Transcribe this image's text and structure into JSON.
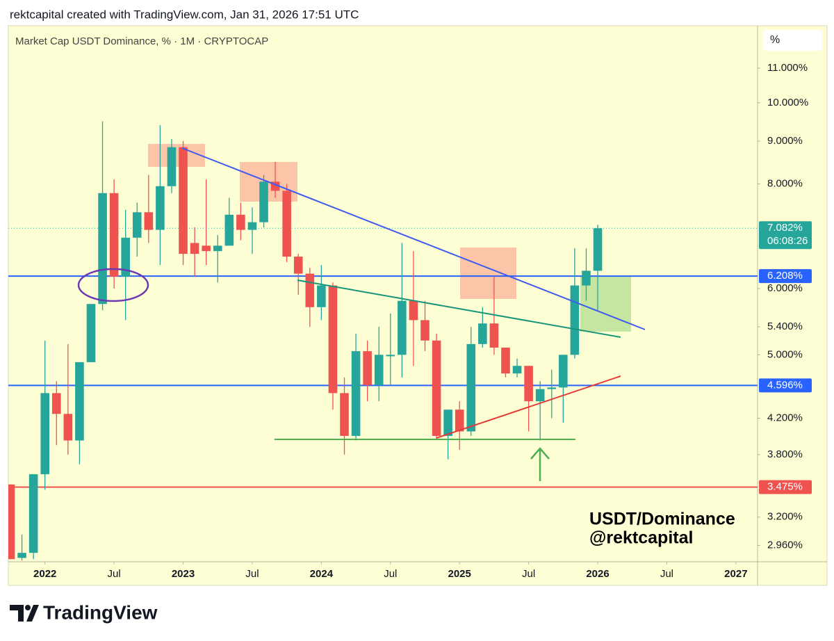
{
  "header": "rektcapital created with TradingView.com, Jan 31, 2026 17:51 UTC",
  "chart_data": {
    "type": "candlestick",
    "legend": "Market Cap USDT Dominance, % · 1M · CRYPTOCAP",
    "scale_unit": "%",
    "log_scale": true,
    "up_color": "#26a69a",
    "down_color": "#ef5350",
    "x": [
      "2021-10",
      "2021-11",
      "2021-12",
      "2022-01",
      "2022-02",
      "2022-03",
      "2022-04",
      "2022-05",
      "2022-06",
      "2022-07",
      "2022-08",
      "2022-09",
      "2022-10",
      "2022-11",
      "2022-12",
      "2023-01",
      "2023-02",
      "2023-03",
      "2023-04",
      "2023-05",
      "2023-06",
      "2023-07",
      "2023-08",
      "2023-09",
      "2023-10",
      "2023-11",
      "2023-12",
      "2024-01",
      "2024-02",
      "2024-03",
      "2024-04",
      "2024-05",
      "2024-06",
      "2024-07",
      "2024-08",
      "2024-09",
      "2024-10",
      "2024-11",
      "2024-12",
      "2025-01",
      "2025-02",
      "2025-03",
      "2025-04",
      "2025-05",
      "2025-06",
      "2025-07",
      "2025-08",
      "2025-09",
      "2025-10",
      "2025-11",
      "2025-12",
      "2026-01"
    ],
    "open": [
      3.5,
      2.86,
      2.9,
      3.6,
      4.5,
      4.25,
      3.95,
      4.9,
      5.75,
      7.8,
      6.2,
      6.9,
      7.4,
      7.05,
      7.95,
      8.85,
      6.8,
      6.75,
      6.65,
      6.75,
      7.35,
      7.05,
      7.2,
      8.05,
      7.85,
      6.55,
      6.25,
      5.7,
      6.05,
      4.5,
      4.0,
      5.05,
      4.6,
      4.98,
      5.0,
      5.8,
      5.5,
      5.2,
      4.0,
      4.3,
      4.05,
      5.15,
      5.45,
      5.1,
      4.75,
      4.85,
      4.4,
      4.55,
      4.57,
      5.0,
      6.05,
      6.3
    ],
    "high": [
      3.5,
      3.05,
      3.6,
      5.2,
      4.65,
      5.15,
      4.9,
      5.75,
      9.5,
      8.1,
      7.45,
      7.6,
      8.2,
      9.4,
      9.05,
      9.0,
      7.1,
      8.1,
      6.95,
      7.7,
      7.6,
      7.5,
      8.2,
      8.5,
      8.0,
      6.6,
      6.35,
      6.4,
      6.1,
      4.7,
      5.3,
      5.2,
      5.4,
      5.6,
      6.8,
      6.65,
      5.8,
      5.3,
      4.3,
      4.4,
      5.4,
      5.7,
      6.2,
      5.1,
      4.95,
      4.85,
      4.65,
      4.8,
      5.0,
      6.7,
      6.7,
      7.15
    ],
    "low": [
      2.85,
      2.84,
      2.85,
      3.45,
      3.9,
      3.8,
      3.7,
      4.9,
      5.65,
      6.0,
      5.5,
      6.55,
      6.8,
      6.4,
      7.8,
      6.4,
      6.2,
      6.4,
      6.1,
      6.75,
      6.85,
      6.6,
      7.1,
      7.7,
      6.45,
      5.9,
      5.4,
      5.5,
      4.3,
      3.8,
      3.95,
      4.4,
      4.4,
      4.6,
      4.7,
      4.85,
      5.05,
      3.97,
      3.75,
      3.85,
      4.0,
      5.1,
      5.0,
      4.7,
      4.7,
      4.05,
      3.95,
      4.2,
      4.15,
      4.95,
      5.8,
      5.65
    ],
    "close": [
      2.85,
      2.9,
      3.6,
      4.5,
      4.25,
      3.95,
      4.9,
      5.75,
      7.8,
      6.2,
      6.9,
      7.4,
      7.05,
      7.95,
      8.85,
      6.6,
      6.6,
      6.65,
      6.75,
      7.35,
      7.05,
      7.2,
      8.05,
      7.85,
      6.55,
      6.25,
      5.7,
      6.05,
      4.5,
      4.0,
      5.05,
      4.6,
      5.0,
      5.0,
      5.8,
      5.5,
      5.2,
      4.0,
      4.3,
      4.05,
      5.15,
      5.45,
      5.1,
      4.75,
      4.85,
      4.4,
      4.55,
      4.57,
      5.0,
      6.05,
      6.3,
      7.082
    ],
    "xlim": [
      "2021-10",
      "2027-03"
    ],
    "xticks": [
      {
        "value": "2022-01",
        "label": "2022"
      },
      {
        "value": "2022-07",
        "label": "Jul"
      },
      {
        "value": "2023-01",
        "label": "2023"
      },
      {
        "value": "2023-07",
        "label": "Jul"
      },
      {
        "value": "2024-01",
        "label": "2024"
      },
      {
        "value": "2024-07",
        "label": "Jul"
      },
      {
        "value": "2025-01",
        "label": "2025"
      },
      {
        "value": "2025-07",
        "label": "Jul"
      },
      {
        "value": "2026-01",
        "label": "2026"
      },
      {
        "value": "2026-07",
        "label": "Jul"
      },
      {
        "value": "2027-01",
        "label": "2027"
      }
    ],
    "ylim": [
      2.83,
      12.36
    ],
    "yticks": [
      {
        "value": 11,
        "label": "11.000%"
      },
      {
        "value": 10,
        "label": "10.000%"
      },
      {
        "value": 9,
        "label": "9.000%"
      },
      {
        "value": 8,
        "label": "8.000%"
      },
      {
        "value": 6,
        "label": "6.000%"
      },
      {
        "value": 5.4,
        "label": "5.400%"
      },
      {
        "value": 5,
        "label": "5.000%"
      },
      {
        "value": 4.2,
        "label": "4.200%"
      },
      {
        "value": 3.8,
        "label": "3.800%"
      },
      {
        "value": 3.2,
        "label": "3.200%"
      },
      {
        "value": 2.96,
        "label": "2.960%"
      }
    ],
    "price_lines": [
      {
        "value": 7.082,
        "label": "7.082%",
        "countdown": "06:08:26",
        "color": "#26a69a",
        "style": "dotted"
      },
      {
        "value": 6.208,
        "label": "6.208%",
        "color": "#2962ff",
        "style": "solid"
      },
      {
        "value": 4.596,
        "label": "4.596%",
        "color": "#2962ff",
        "style": "solid"
      },
      {
        "value": 3.475,
        "label": "3.475%",
        "color": "#ef5350",
        "style": "solid"
      }
    ],
    "annotations": [
      "USDT/Dominance",
      "@rektcapital"
    ]
  },
  "footer": {
    "brand": "TradingView"
  }
}
